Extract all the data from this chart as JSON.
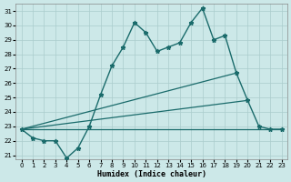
{
  "xlabel": "Humidex (Indice chaleur)",
  "ylabel": "",
  "xlim": [
    -0.5,
    23.5
  ],
  "ylim": [
    20.7,
    31.5
  ],
  "yticks": [
    21,
    22,
    23,
    24,
    25,
    26,
    27,
    28,
    29,
    30,
    31
  ],
  "xticks": [
    0,
    1,
    2,
    3,
    4,
    5,
    6,
    7,
    8,
    9,
    10,
    11,
    12,
    13,
    14,
    15,
    16,
    17,
    18,
    19,
    20,
    21,
    22,
    23
  ],
  "bg_color": "#cce8e8",
  "line_color": "#1a6b6b",
  "grid_color": "#aacccc",
  "lines": [
    {
      "x": [
        0,
        1,
        2,
        3,
        4,
        5,
        6,
        7,
        8,
        9,
        10,
        11,
        12,
        13,
        14,
        15,
        16,
        17,
        18,
        19,
        20,
        21,
        22,
        23
      ],
      "y": [
        22.8,
        22.2,
        22.0,
        22.0,
        20.8,
        21.5,
        23.0,
        25.2,
        27.2,
        28.5,
        30.2,
        29.5,
        28.2,
        28.5,
        28.8,
        30.2,
        31.2,
        29.0,
        29.3,
        26.7,
        24.8,
        23.0,
        22.8,
        22.8
      ],
      "marker": "*",
      "linewidth": 1.0
    },
    {
      "x": [
        0,
        19
      ],
      "y": [
        22.8,
        26.7
      ],
      "marker": null,
      "linewidth": 0.9
    },
    {
      "x": [
        0,
        20
      ],
      "y": [
        22.8,
        24.8
      ],
      "marker": null,
      "linewidth": 0.9
    },
    {
      "x": [
        0,
        23
      ],
      "y": [
        22.8,
        22.8
      ],
      "marker": null,
      "linewidth": 0.9
    }
  ]
}
